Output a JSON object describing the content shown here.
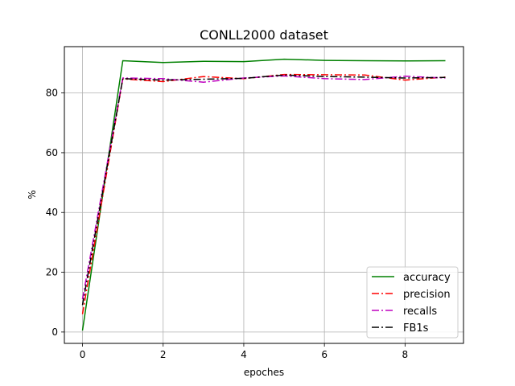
{
  "chart_data": {
    "type": "line",
    "title": "CONLL2000 dataset",
    "xlabel": "epoches",
    "ylabel": "%",
    "xlim": [
      -0.45,
      9.45
    ],
    "ylim": [
      -3.8,
      95.5
    ],
    "xticks": [
      0,
      2,
      4,
      6,
      8
    ],
    "yticks": [
      0,
      20,
      40,
      60,
      80
    ],
    "grid": true,
    "legend_position": "lower-right",
    "x": [
      0,
      1,
      2,
      3,
      4,
      5,
      6,
      7,
      8,
      9
    ],
    "series": [
      {
        "name": "accuracy",
        "color": "#008000",
        "dash": "solid",
        "values": [
          0.5,
          90.8,
          90.2,
          90.6,
          90.5,
          91.3,
          90.9,
          90.8,
          90.7,
          90.8
        ]
      },
      {
        "name": "precision",
        "color": "#ff0000",
        "dash": "dashdot",
        "values": [
          6,
          84.7,
          83.8,
          85.5,
          84.8,
          86.2,
          86.1,
          86.0,
          84.3,
          85.3
        ]
      },
      {
        "name": "recalls",
        "color": "#bf00bf",
        "dash": "dashdot",
        "values": [
          11,
          85.0,
          84.8,
          83.6,
          85.0,
          85.7,
          84.8,
          84.5,
          85.6,
          85.0
        ]
      },
      {
        "name": "FB1s",
        "color": "#000000",
        "dash": "dashdot",
        "values": [
          9,
          84.8,
          84.3,
          84.6,
          84.9,
          86.0,
          85.5,
          85.3,
          85.0,
          85.2
        ]
      }
    ]
  }
}
